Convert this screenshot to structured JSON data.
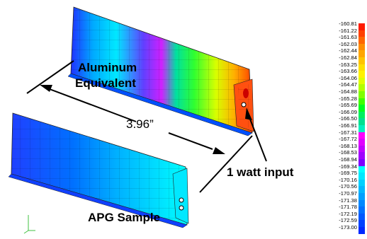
{
  "labels": {
    "aluminum_line1": "Aluminum",
    "aluminum_line2": "Equivalent",
    "dimension": "3.96”",
    "input": "1 watt input",
    "sample": "APG Sample"
  },
  "legend": {
    "values": [
      "-160.81",
      "-161.22",
      "-161.63",
      "-162.03",
      "-162.44",
      "-162.84",
      "-163.25",
      "-163.66",
      "-164.06",
      "-164.47",
      "-164.88",
      "-165.28",
      "-165.69",
      "-166.09",
      "-166.50",
      "-166.91",
      "-167.31",
      "-167.72",
      "-168.13",
      "-168.53",
      "-168.94",
      "-169.34",
      "-169.75",
      "-170.16",
      "-170.56",
      "-170.97",
      "-171.38",
      "-171.78",
      "-172.19",
      "-172.59",
      "-173.00"
    ],
    "colors": [
      "#ff1a00",
      "#ff4000",
      "#ff6600",
      "#ff8c00",
      "#ffa600",
      "#ffc400",
      "#ffe000",
      "#fff200",
      "#e0ff00",
      "#b3ff00",
      "#80ff00",
      "#40ff00",
      "#00ff20",
      "#00f060",
      "#00e090",
      "#00f0c0",
      "#ff00ff",
      "#e000ff",
      "#c000ff",
      "#a000ff",
      "#8000ff",
      "#00ffff",
      "#00e8ff",
      "#00d0ff",
      "#00b8ff",
      "#00a0ff",
      "#0088ff",
      "#0070ff",
      "#0058ff",
      "#0040ff",
      "#0028ff"
    ]
  }
}
